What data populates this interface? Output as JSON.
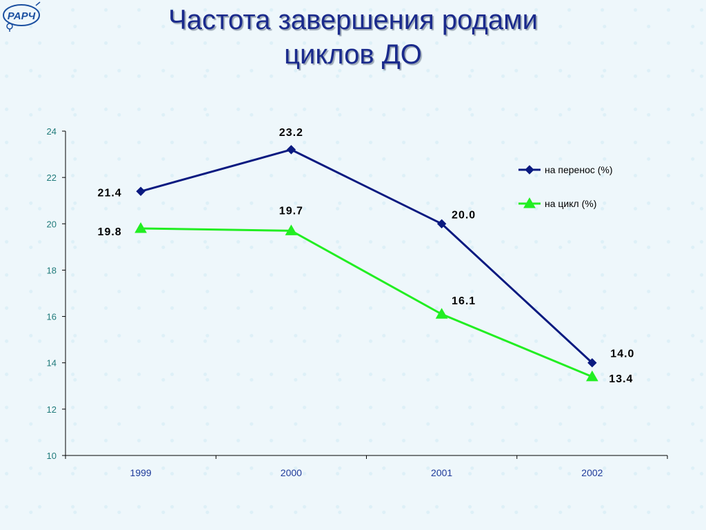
{
  "logo": {
    "text": "РАРЧ",
    "icon": "gender-symbols-logo"
  },
  "title": {
    "line1": "Частота завершения родами",
    "line2": "циклов ДО"
  },
  "chart_data": {
    "type": "line",
    "title": "Частота завершения родами циклов ДО",
    "categories": [
      "1999",
      "2000",
      "2001",
      "2002"
    ],
    "ylim": [
      10,
      24
    ],
    "yticks": [
      10,
      12,
      14,
      16,
      18,
      20,
      22,
      24
    ],
    "grid": false,
    "legend": "right",
    "series": [
      {
        "name": "на перенос (%)",
        "values": [
          21.4,
          23.2,
          20.0,
          14.0
        ],
        "labels": [
          "21.4",
          "23.2",
          "20.0",
          "14.0"
        ],
        "color": "#0a1a80",
        "marker": "diamond"
      },
      {
        "name": "на цикл (%)",
        "values": [
          19.8,
          19.7,
          16.1,
          13.4
        ],
        "labels": [
          "19.8",
          "19.7",
          "16.1",
          "13.4"
        ],
        "color": "#22ee22",
        "marker": "triangle"
      }
    ]
  }
}
